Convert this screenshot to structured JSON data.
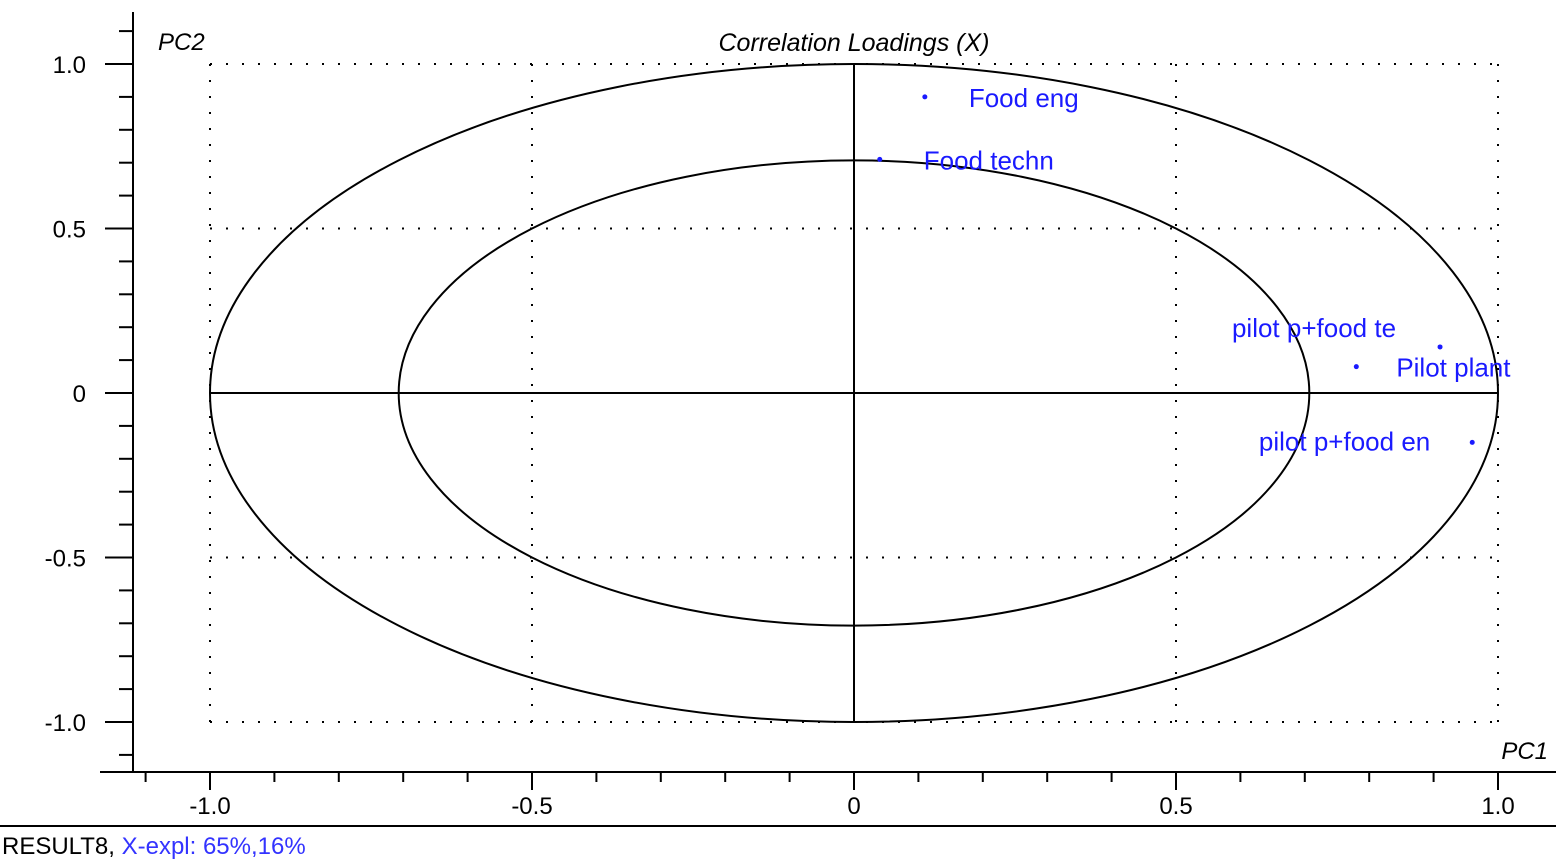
{
  "chart_data": {
    "type": "scatter",
    "title": "Correlation Loadings (X)",
    "xlabel": "PC1",
    "ylabel": "PC2",
    "xlim": [
      -1.12,
      1.08
    ],
    "ylim": [
      -1.14,
      1.16
    ],
    "x_ticks": [
      -1.0,
      -0.5,
      0,
      0.5,
      1.0
    ],
    "x_tick_labels": [
      "-1.0",
      "-0.5",
      "0",
      "0.5",
      "1.0"
    ],
    "y_ticks": [
      1.0,
      0.5,
      0,
      -0.5,
      -1.0
    ],
    "y_tick_labels": [
      "1.0",
      "0.5",
      "0",
      "-0.5",
      "-1.0"
    ],
    "grid": true,
    "circles": [
      1.0,
      0.707
    ],
    "points": [
      {
        "label": "Food eng",
        "x": 0.11,
        "y": 0.9
      },
      {
        "label": "Food techn",
        "x": 0.04,
        "y": 0.71
      },
      {
        "label": "pilot p+food te",
        "x": 0.91,
        "y": 0.14
      },
      {
        "label": "Pilot plant",
        "x": 0.78,
        "y": 0.08
      },
      {
        "label": "pilot p+food en",
        "x": 0.96,
        "y": -0.15
      }
    ],
    "colors": {
      "points": "#1a1aff",
      "axes": "#000000",
      "grid": "#000000"
    }
  },
  "footer": {
    "model": "RESULT8, ",
    "explained": "X-expl: 65%,16%"
  }
}
